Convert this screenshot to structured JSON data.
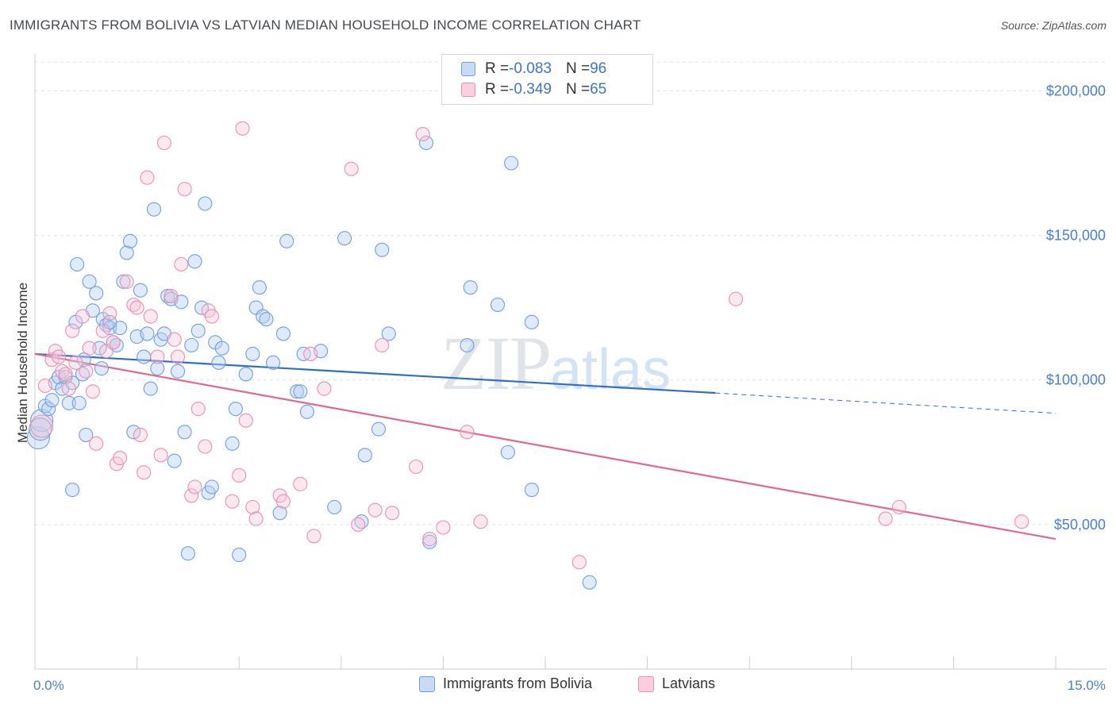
{
  "title": "IMMIGRANTS FROM BOLIVIA VS LATVIAN MEDIAN HOUSEHOLD INCOME CORRELATION CHART",
  "source": "Source: ZipAtlas.com",
  "watermark": {
    "zip": "ZIP",
    "atlas": "atlas"
  },
  "legend": {
    "rows": [
      {
        "r_label": "R = ",
        "r_value": "-0.083",
        "n_label": "N = ",
        "n_value": "96"
      },
      {
        "r_label": "R = ",
        "r_value": "-0.349",
        "n_label": "N = ",
        "n_value": "65"
      }
    ]
  },
  "colors": {
    "blue": "#6f9fe0",
    "blue_fill": "#b8d0f3",
    "blue_line": "#2f6fcb",
    "pink": "#ec8fb0",
    "pink_fill": "#f8c6d7",
    "pink_line": "#e0688f",
    "tick": "#4a7fd0"
  },
  "chart_data": {
    "type": "scatter",
    "title": "IMMIGRANTS FROM BOLIVIA VS LATVIAN MEDIAN HOUSEHOLD INCOME CORRELATION CHART",
    "xlabel": "",
    "ylabel": "Median Household Income",
    "xlim": [
      0,
      15
    ],
    "ylim": [
      0,
      210000
    ],
    "x_tick_labels": [
      "0.0%",
      "15.0%"
    ],
    "y_ticks": [
      50000,
      100000,
      150000,
      200000
    ],
    "y_tick_labels": [
      "$50,000",
      "$100,000",
      "$150,000",
      "$200,000"
    ],
    "series": [
      {
        "name": "Immigrants from Bolivia",
        "color": "#6f9fe0",
        "trend": {
          "x": [
            0,
            10
          ],
          "y": [
            109000,
            95500
          ],
          "dashed_to": [
            15,
            88500
          ]
        },
        "points": [
          [
            0.05,
            80000
          ],
          [
            0.1,
            86000
          ],
          [
            0.15,
            91000
          ],
          [
            0.2,
            90000
          ],
          [
            0.25,
            93000
          ],
          [
            0.3,
            99000
          ],
          [
            0.35,
            101000
          ],
          [
            0.4,
            97000
          ],
          [
            0.45,
            101000
          ],
          [
            0.5,
            92000
          ],
          [
            0.55,
            99000
          ],
          [
            0.6,
            120000
          ],
          [
            0.62,
            140000
          ],
          [
            0.65,
            92000
          ],
          [
            0.7,
            102000
          ],
          [
            0.72,
            107000
          ],
          [
            0.75,
            81000
          ],
          [
            0.8,
            134000
          ],
          [
            0.85,
            124000
          ],
          [
            0.9,
            130000
          ],
          [
            0.95,
            111000
          ],
          [
            0.98,
            104000
          ],
          [
            1.0,
            121000
          ],
          [
            1.05,
            119000
          ],
          [
            1.1,
            118000
          ],
          [
            1.15,
            113000
          ],
          [
            1.2,
            112000
          ],
          [
            1.25,
            118000
          ],
          [
            1.1,
            120000
          ],
          [
            1.3,
            134000
          ],
          [
            1.35,
            144000
          ],
          [
            1.4,
            148000
          ],
          [
            1.45,
            82000
          ],
          [
            1.5,
            115000
          ],
          [
            1.55,
            131000
          ],
          [
            1.6,
            108000
          ],
          [
            1.65,
            116000
          ],
          [
            1.7,
            97000
          ],
          [
            1.75,
            159000
          ],
          [
            1.8,
            104000
          ],
          [
            1.85,
            114000
          ],
          [
            1.9,
            116000
          ],
          [
            1.95,
            129000
          ],
          [
            2.0,
            128000
          ],
          [
            2.05,
            72000
          ],
          [
            2.1,
            103000
          ],
          [
            2.15,
            127000
          ],
          [
            2.2,
            82000
          ],
          [
            2.25,
            40000
          ],
          [
            2.3,
            112000
          ],
          [
            2.35,
            141000
          ],
          [
            2.4,
            117000
          ],
          [
            2.45,
            125000
          ],
          [
            2.5,
            161000
          ],
          [
            2.55,
            61000
          ],
          [
            2.6,
            63000
          ],
          [
            2.65,
            113000
          ],
          [
            2.7,
            106000
          ],
          [
            2.75,
            111000
          ],
          [
            2.9,
            78000
          ],
          [
            2.95,
            90000
          ],
          [
            3.0,
            39500
          ],
          [
            3.1,
            102000
          ],
          [
            3.2,
            109000
          ],
          [
            3.25,
            125000
          ],
          [
            3.3,
            132000
          ],
          [
            3.35,
            122000
          ],
          [
            3.4,
            121000
          ],
          [
            3.5,
            106000
          ],
          [
            3.6,
            54000
          ],
          [
            3.65,
            116000
          ],
          [
            3.7,
            148000
          ],
          [
            3.85,
            96000
          ],
          [
            3.9,
            96000
          ],
          [
            3.95,
            109000
          ],
          [
            4.0,
            89000
          ],
          [
            4.2,
            110000
          ],
          [
            4.4,
            56000
          ],
          [
            4.55,
            149000
          ],
          [
            4.8,
            51000
          ],
          [
            4.85,
            74000
          ],
          [
            5.05,
            83000
          ],
          [
            5.1,
            145000
          ],
          [
            5.2,
            116000
          ],
          [
            5.8,
            44000
          ],
          [
            5.75,
            182000
          ],
          [
            6.35,
            112000
          ],
          [
            6.4,
            132000
          ],
          [
            6.8,
            126000
          ],
          [
            6.95,
            75000
          ],
          [
            7.0,
            175000
          ],
          [
            7.3,
            120000
          ],
          [
            7.3,
            62000
          ],
          [
            8.15,
            30000
          ],
          [
            0.55,
            62000
          ],
          [
            0.08,
            83000
          ]
        ]
      },
      {
        "name": "Latvians",
        "color": "#ec8fb0",
        "trend": {
          "x": [
            0,
            15
          ],
          "y": [
            109000,
            45000
          ]
        },
        "points": [
          [
            0.1,
            84000
          ],
          [
            0.15,
            98000
          ],
          [
            0.25,
            107000
          ],
          [
            0.3,
            110000
          ],
          [
            0.35,
            108000
          ],
          [
            0.4,
            103000
          ],
          [
            0.45,
            102000
          ],
          [
            0.5,
            97000
          ],
          [
            0.55,
            117000
          ],
          [
            0.6,
            106000
          ],
          [
            0.7,
            122000
          ],
          [
            0.75,
            103000
          ],
          [
            0.8,
            111000
          ],
          [
            0.85,
            96000
          ],
          [
            0.9,
            78000
          ],
          [
            1.0,
            117000
          ],
          [
            1.05,
            110000
          ],
          [
            1.1,
            123000
          ],
          [
            1.15,
            113000
          ],
          [
            1.2,
            71000
          ],
          [
            1.25,
            73000
          ],
          [
            1.35,
            134000
          ],
          [
            1.45,
            126000
          ],
          [
            1.5,
            125000
          ],
          [
            1.55,
            81000
          ],
          [
            1.6,
            68000
          ],
          [
            1.65,
            170000
          ],
          [
            1.7,
            122000
          ],
          [
            1.8,
            108000
          ],
          [
            1.85,
            74000
          ],
          [
            1.9,
            182000
          ],
          [
            2.0,
            129000
          ],
          [
            2.05,
            114000
          ],
          [
            2.1,
            108000
          ],
          [
            2.15,
            140000
          ],
          [
            2.2,
            166000
          ],
          [
            2.3,
            60000
          ],
          [
            2.35,
            63000
          ],
          [
            2.4,
            90000
          ],
          [
            2.5,
            77000
          ],
          [
            2.55,
            124000
          ],
          [
            2.6,
            122000
          ],
          [
            2.9,
            58000
          ],
          [
            3.0,
            67000
          ],
          [
            3.05,
            187000
          ],
          [
            3.1,
            86000
          ],
          [
            3.2,
            56000
          ],
          [
            3.25,
            52000
          ],
          [
            3.6,
            60000
          ],
          [
            3.65,
            58000
          ],
          [
            3.9,
            64000
          ],
          [
            4.05,
            109000
          ],
          [
            4.1,
            46000
          ],
          [
            4.25,
            97000
          ],
          [
            4.65,
            173000
          ],
          [
            4.75,
            50000
          ],
          [
            5.0,
            55000
          ],
          [
            5.1,
            112000
          ],
          [
            5.25,
            54000
          ],
          [
            5.6,
            70000
          ],
          [
            5.7,
            185000
          ],
          [
            5.8,
            45000
          ],
          [
            6.0,
            49000
          ],
          [
            6.35,
            82000
          ],
          [
            6.55,
            51000
          ],
          [
            8.0,
            37000
          ],
          [
            10.3,
            128000
          ],
          [
            12.5,
            52000
          ],
          [
            12.7,
            56000
          ],
          [
            14.5,
            51000
          ]
        ]
      }
    ]
  }
}
